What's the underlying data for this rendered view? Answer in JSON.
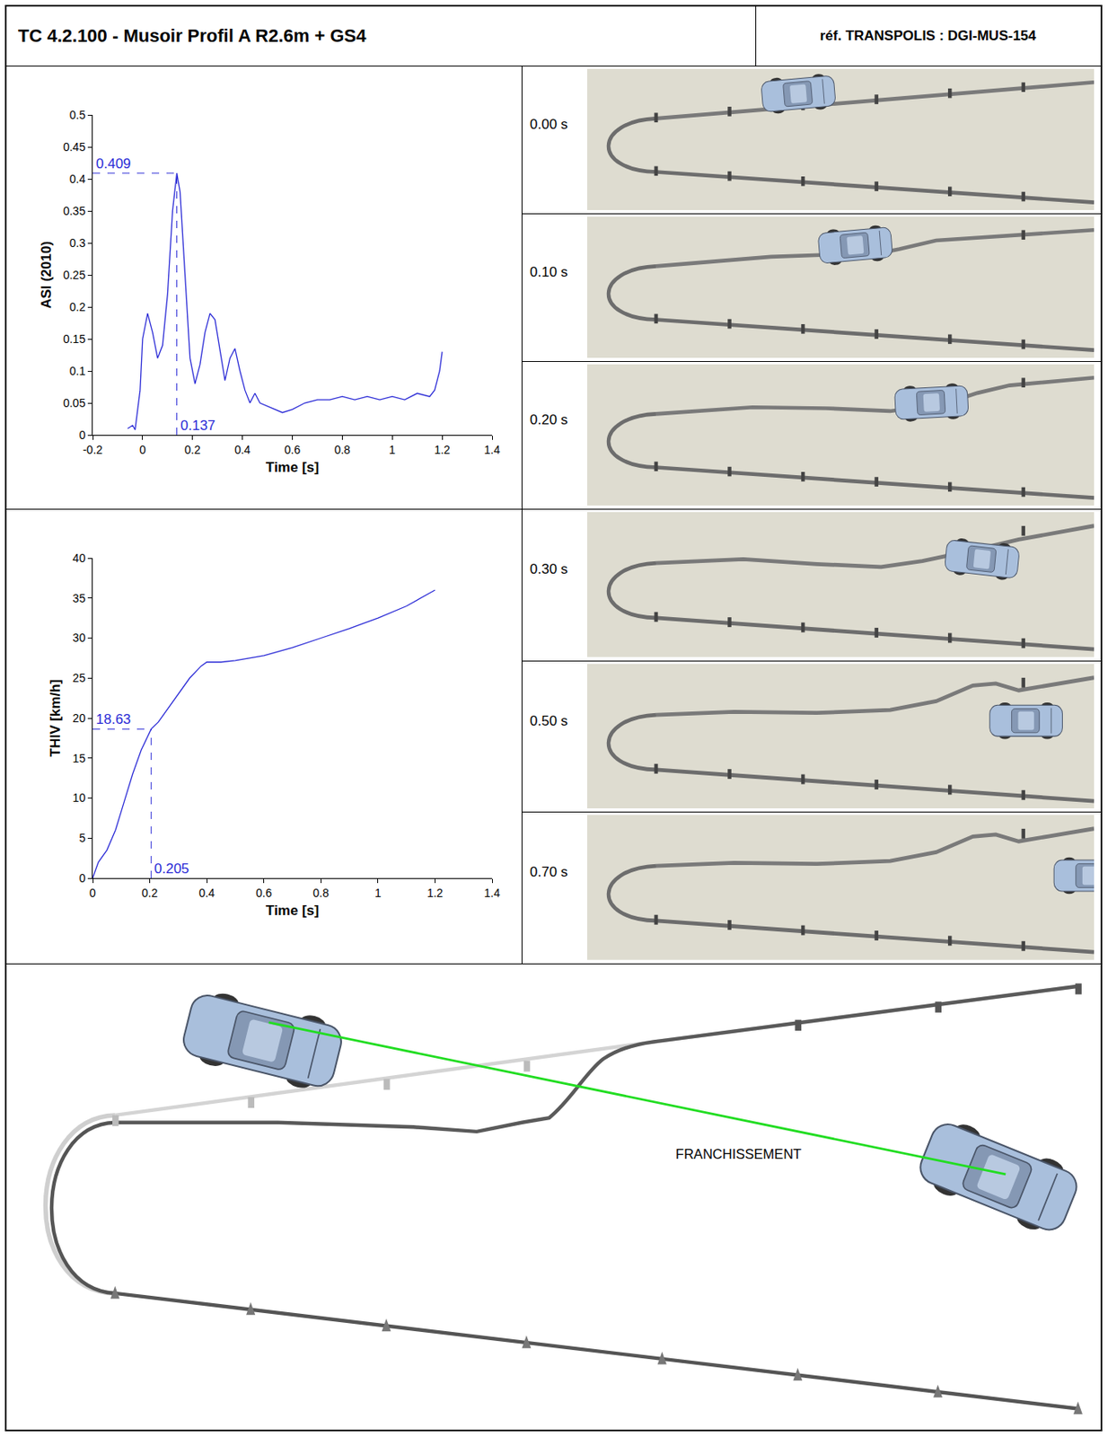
{
  "header": {
    "title": "TC 4.2.100 - Musoir Profil A R2.6m + GS4",
    "reference": "réf. TRANSPOLIS : DGI-MUS-154"
  },
  "chart_data": [
    {
      "type": "line",
      "x_label": "Time [s]",
      "y_label": "ASI (2010)",
      "color": "#2b2bd6",
      "grid": false,
      "x": [
        -0.06,
        -0.04,
        -0.03,
        -0.01,
        0.0,
        0.02,
        0.04,
        0.06,
        0.08,
        0.1,
        0.12,
        0.137,
        0.15,
        0.17,
        0.19,
        0.21,
        0.23,
        0.25,
        0.27,
        0.29,
        0.31,
        0.33,
        0.35,
        0.37,
        0.39,
        0.41,
        0.43,
        0.45,
        0.47,
        0.5,
        0.53,
        0.56,
        0.6,
        0.65,
        0.7,
        0.75,
        0.8,
        0.85,
        0.9,
        0.95,
        1.0,
        1.05,
        1.1,
        1.15,
        1.17,
        1.19,
        1.2
      ],
      "values": [
        0.01,
        0.015,
        0.008,
        0.07,
        0.15,
        0.19,
        0.16,
        0.12,
        0.14,
        0.22,
        0.35,
        0.409,
        0.38,
        0.25,
        0.12,
        0.08,
        0.11,
        0.16,
        0.19,
        0.18,
        0.13,
        0.085,
        0.12,
        0.135,
        0.1,
        0.07,
        0.05,
        0.065,
        0.05,
        0.045,
        0.04,
        0.035,
        0.04,
        0.05,
        0.055,
        0.055,
        0.06,
        0.055,
        0.06,
        0.055,
        0.06,
        0.055,
        0.065,
        0.06,
        0.07,
        0.1,
        0.13
      ],
      "xlim": [
        -0.2,
        1.4
      ],
      "xticks": [
        -0.2,
        0,
        0.2,
        0.4,
        0.6,
        0.8,
        1,
        1.2,
        1.4
      ],
      "ylim": [
        0,
        0.5
      ],
      "yticks": [
        0,
        0.05,
        0.1,
        0.15,
        0.2,
        0.25,
        0.3,
        0.35,
        0.4,
        0.45,
        0.5
      ],
      "annotations": [
        {
          "x": 0.137,
          "y": 0.409,
          "x_text": "0.137",
          "y_text": "0.409"
        }
      ]
    },
    {
      "type": "line",
      "x_label": "Time [s]",
      "y_label": "THIV [km/h]",
      "color": "#2b2bd6",
      "grid": false,
      "x": [
        0,
        0.02,
        0.05,
        0.08,
        0.11,
        0.14,
        0.17,
        0.205,
        0.23,
        0.26,
        0.3,
        0.34,
        0.38,
        0.4,
        0.45,
        0.5,
        0.6,
        0.7,
        0.8,
        0.9,
        1.0,
        1.1,
        1.2
      ],
      "values": [
        0,
        2,
        3.5,
        6,
        9.5,
        13,
        16,
        18.63,
        19.5,
        21,
        23,
        25,
        26.5,
        27,
        27,
        27.2,
        27.8,
        28.8,
        30,
        31.2,
        32.5,
        34,
        36
      ],
      "xlim": [
        0,
        1.4
      ],
      "xticks": [
        0,
        0.2,
        0.4,
        0.6,
        0.8,
        1,
        1.2,
        1.4
      ],
      "ylim": [
        0,
        40
      ],
      "yticks": [
        0,
        5,
        10,
        15,
        20,
        25,
        30,
        35,
        40
      ],
      "annotations": [
        {
          "x": 0.205,
          "y": 18.63,
          "x_text": "0.205",
          "y_text": "18.63"
        }
      ]
    }
  ],
  "snapshots": [
    "0.00 s",
    "0.10 s",
    "0.20 s",
    "0.30 s",
    "0.50 s",
    "0.70 s"
  ],
  "diagram": {
    "label": "FRANCHISSEMENT"
  }
}
